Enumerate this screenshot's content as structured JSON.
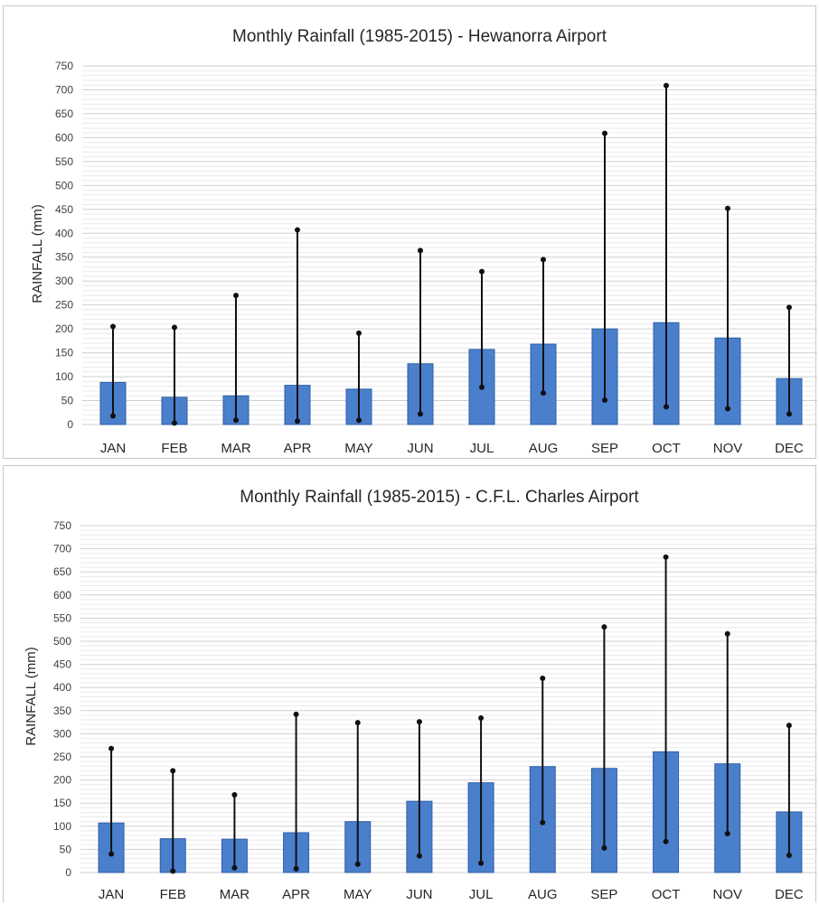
{
  "chart_data": [
    {
      "type": "bar",
      "title": "Monthly Rainfall (1985-2015) - Hewanorra Airport",
      "xlabel": "",
      "ylabel": "RAINFALL  (mm)",
      "ylim": [
        0,
        750
      ],
      "yticks": [
        0,
        50,
        100,
        150,
        200,
        250,
        300,
        350,
        400,
        450,
        500,
        550,
        600,
        650,
        700,
        750
      ],
      "grid": true,
      "categories": [
        "JAN",
        "FEB",
        "MAR",
        "APR",
        "MAY",
        "JUN",
        "JUL",
        "AUG",
        "SEP",
        "OCT",
        "NOV",
        "DEC"
      ],
      "series": [
        {
          "values": [
            88,
            57,
            60,
            82,
            74,
            127,
            157,
            168,
            200,
            213,
            181,
            96
          ]
        }
      ],
      "range_min": [
        18,
        3,
        9,
        7,
        9,
        22,
        78,
        66,
        51,
        37,
        33,
        22
      ],
      "range_max": [
        205,
        203,
        270,
        407,
        191,
        364,
        320,
        345,
        609,
        709,
        452,
        245
      ],
      "colors": {
        "bar": "#4a7fcc",
        "bar_edge": "#2e5fa8",
        "whisker": "#111111"
      }
    },
    {
      "type": "bar",
      "title": "Monthly Rainfall (1985-2015) - C.F.L. Charles Airport",
      "xlabel": "",
      "ylabel": "RAINFALL  (mm)",
      "ylim": [
        0,
        750
      ],
      "yticks": [
        0,
        50,
        100,
        150,
        200,
        250,
        300,
        350,
        400,
        450,
        500,
        550,
        600,
        650,
        700,
        750
      ],
      "grid": true,
      "categories": [
        "JAN",
        "FEB",
        "MAR",
        "APR",
        "MAY",
        "JUN",
        "JUL",
        "AUG",
        "SEP",
        "OCT",
        "NOV",
        "DEC"
      ],
      "series": [
        {
          "values": [
            107,
            73,
            72,
            86,
            110,
            154,
            194,
            229,
            225,
            261,
            235,
            131
          ]
        }
      ],
      "range_min": [
        40,
        3,
        10,
        8,
        18,
        36,
        20,
        108,
        53,
        67,
        84,
        37
      ],
      "range_max": [
        268,
        220,
        168,
        342,
        324,
        326,
        334,
        420,
        531,
        682,
        516,
        318
      ],
      "colors": {
        "bar": "#4a7fcc",
        "bar_edge": "#2e5fa8",
        "whisker": "#111111"
      }
    }
  ]
}
